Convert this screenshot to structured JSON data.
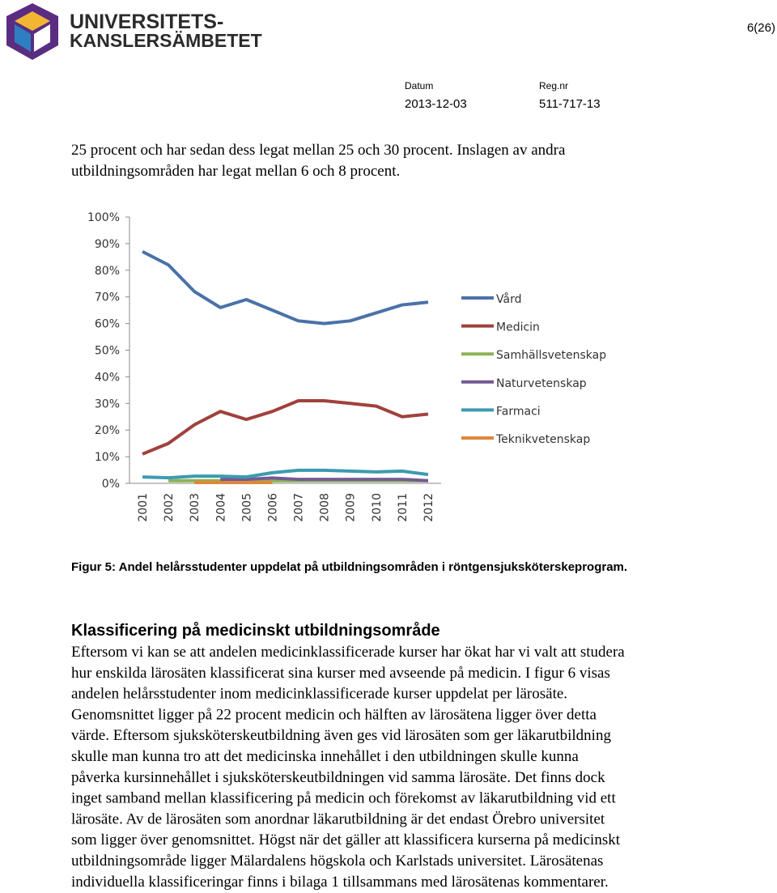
{
  "header": {
    "logo_line1": "UNIVERSITETS-",
    "logo_line2": "KANSLERSÄMBETET",
    "page": "6(26)",
    "date_label": "Datum",
    "date": "2013-12-03",
    "reg_label": "Reg.nr",
    "reg": "511-717-13"
  },
  "intro_lines": [
    "25 procent och har sedan dess legat mellan 25 och 30 procent. Inslagen av andra",
    "utbildningsområden har legat mellan 6 och 8 procent."
  ],
  "chart_data": {
    "type": "line",
    "categories": [
      "2001",
      "2002",
      "2003",
      "2004",
      "2005",
      "2006",
      "2007",
      "2008",
      "2009",
      "2010",
      "2011",
      "2012"
    ],
    "series": [
      {
        "name": "Vård",
        "color": "#4a72a8",
        "values": [
          87,
          82,
          72,
          66,
          69,
          65,
          61,
          60,
          61,
          64,
          67,
          68
        ]
      },
      {
        "name": "Medicin",
        "color": "#a0413d",
        "values": [
          11,
          15,
          22,
          27,
          24,
          27,
          31,
          31,
          30,
          29,
          25,
          26
        ]
      },
      {
        "name": "Samhällsvetenskap",
        "color": "#8db255",
        "values": [
          null,
          1,
          1,
          1,
          1,
          1,
          1,
          1,
          1,
          1,
          1,
          1
        ]
      },
      {
        "name": "Naturvetenskap",
        "color": "#735a94",
        "values": [
          null,
          null,
          null,
          1.5,
          1.5,
          2,
          1.5,
          1.5,
          1.5,
          1.5,
          1.5,
          1
        ]
      },
      {
        "name": "Farmaci",
        "color": "#3c9bb0",
        "values": [
          2.4,
          2.1,
          2.7,
          2.7,
          2.4,
          4,
          4.9,
          4.9,
          4.6,
          4.3,
          4.6,
          3.3
        ]
      },
      {
        "name": "Teknikvetenskap",
        "color": "#e0873a",
        "values": [
          null,
          null,
          0.3,
          0.3,
          0.3,
          0.3,
          null,
          null,
          null,
          null,
          null,
          null
        ]
      }
    ],
    "ylim": [
      0,
      100
    ],
    "yticks": [
      {
        "value": 0,
        "label": "0%"
      },
      {
        "value": 10,
        "label": "10%"
      },
      {
        "value": 20,
        "label": "20%"
      },
      {
        "value": 30,
        "label": "30%"
      },
      {
        "value": 40,
        "label": "40%"
      },
      {
        "value": 50,
        "label": "50%"
      },
      {
        "value": 60,
        "label": "60%"
      },
      {
        "value": 70,
        "label": "70%"
      },
      {
        "value": 80,
        "label": "80%"
      },
      {
        "value": 90,
        "label": "90%"
      },
      {
        "value": 100,
        "label": "100%"
      }
    ],
    "legend": "right"
  },
  "caption": "Figur 5: Andel helårsstudenter uppdelat på utbildningsområden i röntgensjuksköterskeprogram.",
  "section_title": "Klassificering på medicinskt utbildningsområde",
  "body_lines": [
    "Eftersom vi kan se att andelen medicinklassificerade kurser har ökat har vi valt att studera",
    "hur enskilda lärosäten klassificerat sina kurser med avseende på medicin. I figur 6 visas",
    "andelen helårsstudenter inom medicinklassificerade kurser uppdelat per lärosäte.",
    "Genomsnittet ligger på 22 procent medicin och hälften av lärosätena ligger över detta",
    "värde. Eftersom sjuksköterskeutbildning även ges vid lärosäten som ger läkarutbildning",
    "skulle man kunna tro att det medicinska innehållet i den utbildningen skulle kunna",
    "påverka kursinnehållet i sjuksköterskeutbildningen vid samma lärosäte. Det finns dock",
    "inget samband mellan klassificering på medicin och förekomst av läkarutbildning vid ett",
    "lärosäte. Av de lärosäten som anordnar läkarutbildning är det endast Örebro universitet",
    "som ligger över genomsnittet. Högst när det gäller att klassificera kurserna på medicinskt",
    "utbildningsområde ligger Mälardalens högskola och Karlstads universitet. Lärosätenas",
    "individuella klassificeringar finns i bilaga 1 tillsammans med lärosätenas kommentarer."
  ]
}
